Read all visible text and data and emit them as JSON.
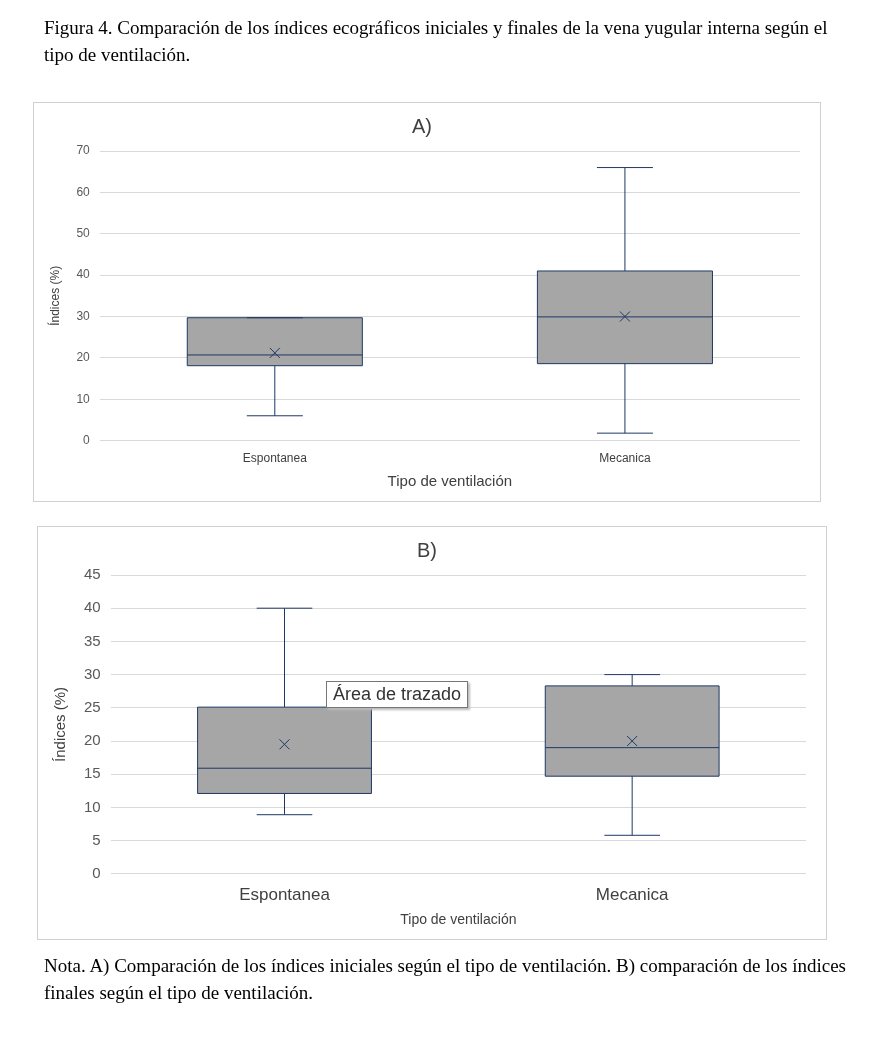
{
  "chart_data": [
    {
      "type": "box",
      "title": "A)",
      "xlabel": "Tipo de ventilación",
      "ylabel": "Índices (%)",
      "annotations": [
        "Figura 4. Comparación de los índices ecográficos iniciales y finales de la vena yugular interna según el tipo de ventilación."
      ],
      "categories": [
        "Espontanea",
        "Mecanica"
      ],
      "ylim": [
        0,
        70
      ],
      "yticks": [
        0,
        10,
        20,
        30,
        40,
        50,
        60,
        70
      ],
      "grid": "y",
      "series": [
        {
          "color": "#a6a6a6",
          "boxes": [
            {
              "low": 6,
              "q1": 18.1,
              "median": 20.7,
              "q3": 29.7,
              "high": 29.7,
              "mean": 21.2
            },
            {
              "low": 1.8,
              "q1": 18.6,
              "median": 29.9,
              "q3": 41,
              "high": 66,
              "mean": 30
            }
          ]
        }
      ]
    },
    {
      "type": "box",
      "title": "B)",
      "xlabel": "Tipo de ventilación",
      "ylabel": "Índices (%)",
      "annotations": [
        "Área de trazado",
        "Nota. A) Comparación de los índices iniciales según el tipo de ventilación. B) comparación de los índices finales según el tipo de ventilación."
      ],
      "categories": [
        "Espontanea",
        "Mecanica"
      ],
      "ylim": [
        0,
        45
      ],
      "yticks": [
        0,
        5,
        10,
        15,
        20,
        25,
        30,
        35,
        40,
        45
      ],
      "grid": "y",
      "series": [
        {
          "color": "#a6a6a6",
          "boxes": [
            {
              "low": 8.9,
              "q1": 12.1,
              "median": 15.9,
              "q3": 25.1,
              "high": 40,
              "mean": 19.5
            },
            {
              "low": 5.8,
              "q1": 14.7,
              "median": 19,
              "q3": 28.3,
              "high": 30,
              "mean": 20
            }
          ]
        }
      ]
    }
  ]
}
